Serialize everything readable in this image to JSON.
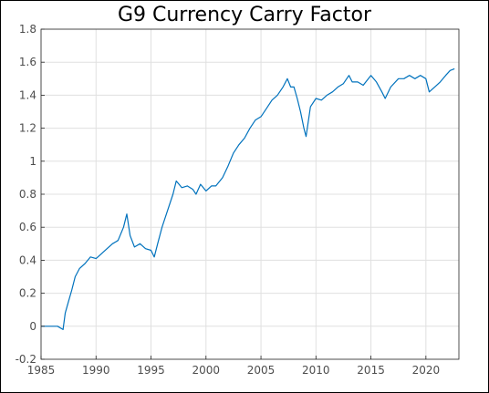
{
  "chart_data": {
    "type": "line",
    "title": "G9 Currency Carry Factor",
    "xlabel": "",
    "ylabel": "",
    "xlim": [
      1985,
      2023
    ],
    "ylim": [
      -0.2,
      1.8
    ],
    "grid": true,
    "line_color": "#0072BD",
    "xticks": [
      1985,
      1990,
      1995,
      2000,
      2005,
      2010,
      2015,
      2020
    ],
    "xtick_labels": [
      "1985",
      "1990",
      "1995",
      "2000",
      "2005",
      "2010",
      "2015",
      "2020"
    ],
    "yticks": [
      -0.2,
      0,
      0.2,
      0.4,
      0.6,
      0.8,
      1,
      1.2,
      1.4,
      1.6,
      1.8
    ],
    "ytick_labels": [
      "-0.2",
      "0",
      "0.2",
      "0.4",
      "0.6",
      "0.8",
      "1",
      "1.2",
      "1.4",
      "1.6",
      "1.8"
    ],
    "series": [
      {
        "x": [
          1985.0,
          1986.5,
          1987.0,
          1987.2,
          1987.5,
          1987.8,
          1988.1,
          1988.5,
          1989.0,
          1989.5,
          1990.0,
          1990.5,
          1991.0,
          1991.5,
          1992.0,
          1992.5,
          1992.8,
          1993.1,
          1993.5,
          1994.0,
          1994.5,
          1995.0,
          1995.3,
          1995.6,
          1996.0,
          1996.5,
          1997.0,
          1997.3,
          1997.8,
          1998.3,
          1998.8,
          1999.1,
          1999.5,
          2000.0,
          2000.5,
          2000.9,
          2001.5,
          2002.0,
          2002.5,
          2003.0,
          2003.5,
          2004.0,
          2004.5,
          2005.0,
          2005.5,
          2006.0,
          2006.5,
          2007.0,
          2007.4,
          2007.7,
          2008.0,
          2008.3,
          2008.6,
          2008.9,
          2009.1,
          2009.5,
          2010.0,
          2010.5,
          2011.0,
          2011.5,
          2012.0,
          2012.5,
          2013.0,
          2013.3,
          2013.8,
          2014.3,
          2015.0,
          2015.5,
          2016.0,
          2016.3,
          2016.8,
          2017.5,
          2018.0,
          2018.5,
          2019.0,
          2019.5,
          2020.0,
          2020.3,
          2020.8,
          2021.3,
          2021.8,
          2022.2,
          2022.6
        ],
        "values": [
          0,
          0,
          -0.02,
          0.08,
          0.15,
          0.22,
          0.3,
          0.35,
          0.38,
          0.42,
          0.41,
          0.44,
          0.47,
          0.5,
          0.52,
          0.6,
          0.68,
          0.55,
          0.48,
          0.5,
          0.47,
          0.46,
          0.42,
          0.5,
          0.6,
          0.7,
          0.8,
          0.88,
          0.84,
          0.85,
          0.83,
          0.8,
          0.86,
          0.82,
          0.85,
          0.85,
          0.9,
          0.97,
          1.05,
          1.1,
          1.14,
          1.2,
          1.25,
          1.27,
          1.32,
          1.37,
          1.4,
          1.45,
          1.5,
          1.45,
          1.45,
          1.38,
          1.3,
          1.2,
          1.15,
          1.33,
          1.38,
          1.37,
          1.4,
          1.42,
          1.45,
          1.47,
          1.52,
          1.48,
          1.48,
          1.46,
          1.52,
          1.48,
          1.42,
          1.38,
          1.45,
          1.5,
          1.5,
          1.52,
          1.5,
          1.52,
          1.5,
          1.42,
          1.45,
          1.48,
          1.52,
          1.55,
          1.56
        ]
      }
    ]
  }
}
